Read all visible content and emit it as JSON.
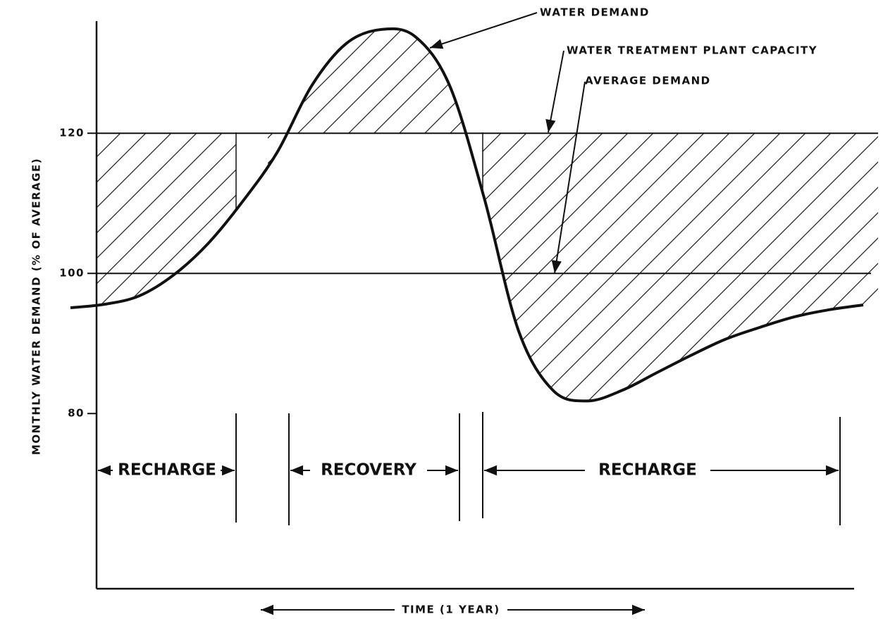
{
  "chart_data": {
    "type": "line",
    "y_label": "MONTHLY WATER DEMAND (% OF AVERAGE)",
    "x_label": "TIME (1 YEAR)",
    "ylim": [
      55,
      136
    ],
    "yticks": [
      80,
      100,
      120
    ],
    "series": [
      {
        "name": "WATER DEMAND",
        "color": "#000000",
        "values": [
          95.1,
          95.6,
          96.8,
          99.8,
          104.3,
          110.3,
          117.3,
          126.8,
          132.8,
          134.8,
          133.8,
          126.8,
          110.8,
          91.8,
          83.3,
          81.8,
          83.3,
          85.8,
          88.3,
          90.6,
          92.3,
          93.8,
          94.8,
          95.5
        ]
      }
    ],
    "capacity": {
      "name": "WATER TREATMENT PLANT CAPACITY",
      "value": 120
    },
    "average": {
      "name": "AVERAGE DEMAND",
      "value": 100
    },
    "phases": [
      "RECHARGE",
      "RECOVERY",
      "RECHARGE"
    ]
  }
}
